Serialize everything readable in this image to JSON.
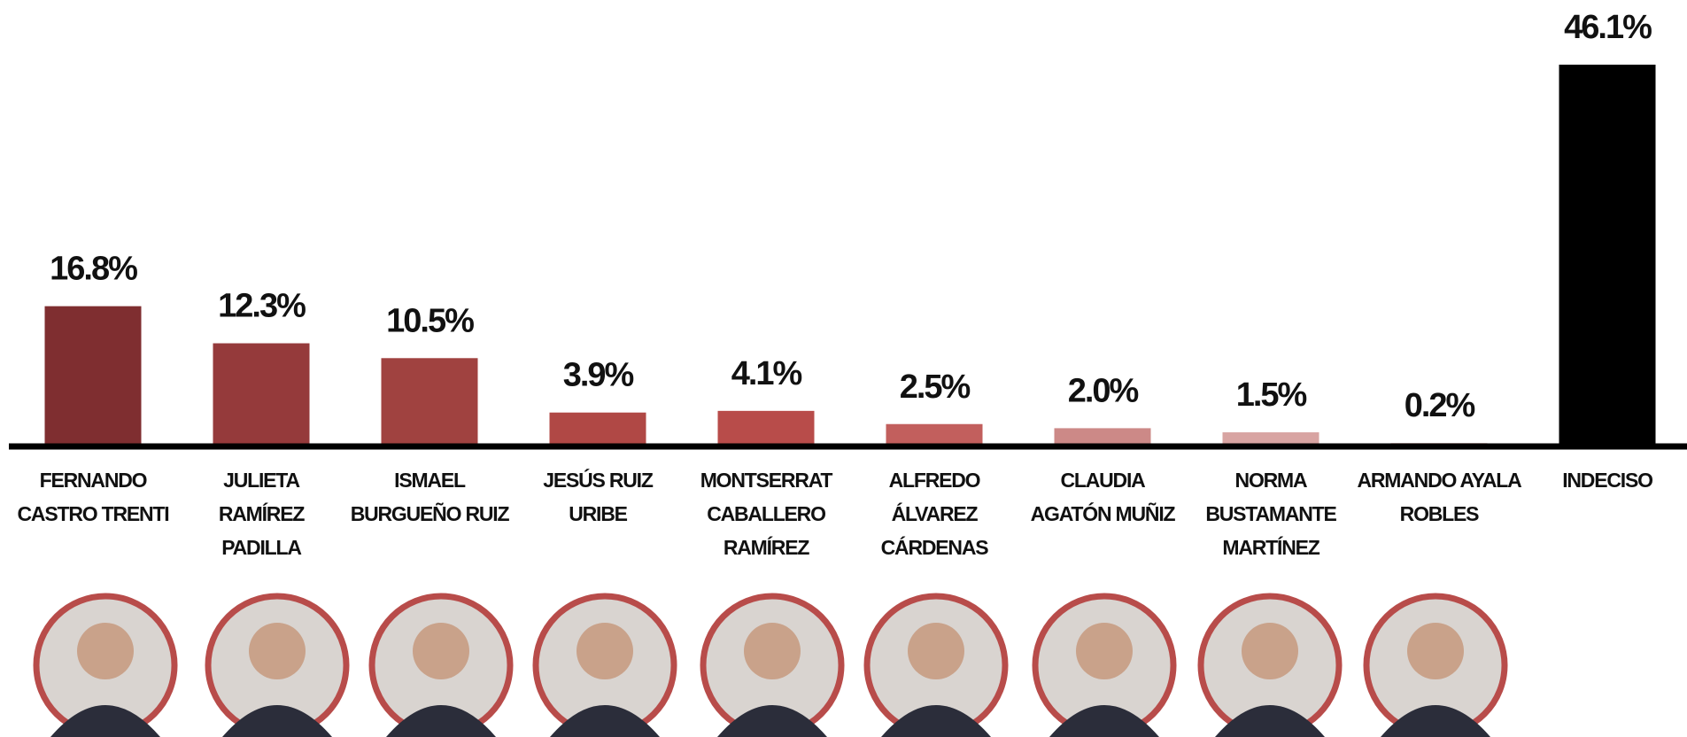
{
  "chart_data": {
    "type": "bar",
    "categories": [
      "FERNANDO CASTRO TRENTI",
      "JULIETA RAMÍREZ PADILLA",
      "ISMAEL BURGUEÑO RUIZ",
      "JESÚS RUIZ URIBE",
      "MONTSERRAT CABALLERO RAMÍREZ",
      "ALFREDO ÁLVAREZ CÁRDENAS",
      "CLAUDIA AGATÓN MUÑIZ",
      "NORMA BUSTAMANTE MARTÍNEZ",
      "ARMANDO AYALA ROBLES",
      "INDECISO"
    ],
    "values": [
      16.8,
      12.3,
      10.5,
      3.9,
      4.1,
      2.5,
      2.0,
      1.5,
      0.2,
      46.1
    ],
    "value_labels": [
      "16.8%",
      "12.3%",
      "10.5%",
      "3.9%",
      "4.1%",
      "2.5%",
      "2.0%",
      "1.5%",
      "0.2%",
      "46.1%"
    ],
    "colors": [
      "#7f2e30",
      "#953a3b",
      "#a04240",
      "#b04845",
      "#b84c4a",
      "#c25f5d",
      "#cc8987",
      "#d8a4a2",
      "#e0b8b6",
      "#000000"
    ]
  }
}
